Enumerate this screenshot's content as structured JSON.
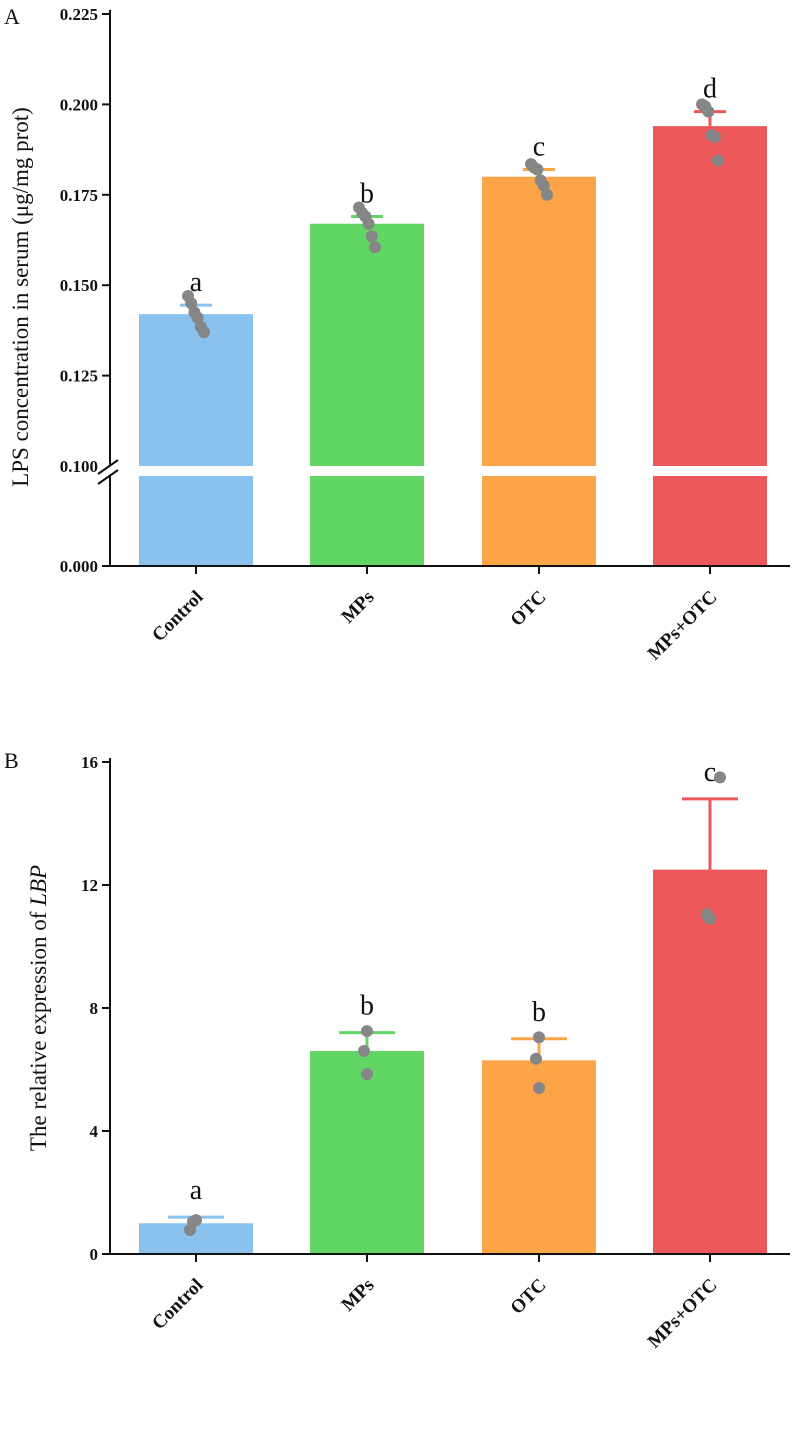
{
  "chart_data": [
    {
      "type": "bar",
      "panel_label": "A",
      "ylabel": "LPS concentration in serum (μg/mg prot)",
      "categories": [
        "Control",
        "MPs",
        "OTC",
        "MPs+OTC"
      ],
      "colors": [
        "#89c2ee",
        "#62d664",
        "#fba448",
        "#ec585a"
      ],
      "values": [
        0.142,
        0.167,
        0.18,
        0.194
      ],
      "errors": [
        0.0025,
        0.002,
        0.002,
        0.004
      ],
      "points": [
        [
          0.147,
          0.145,
          0.1425,
          0.141,
          0.1385,
          0.137
        ],
        [
          0.1715,
          0.17,
          0.169,
          0.167,
          0.1635,
          0.1605
        ],
        [
          0.1835,
          0.1825,
          0.182,
          0.179,
          0.1775,
          0.175
        ],
        [
          0.2,
          0.1995,
          0.198,
          0.1915,
          0.191,
          0.1845
        ]
      ],
      "significance": [
        "a",
        "b",
        "c",
        "d"
      ],
      "yticks": [
        "0.000",
        "0.100",
        "0.125",
        "0.150",
        "0.175",
        "0.200",
        "0.225"
      ],
      "ylim_upper": [
        0.1,
        0.225
      ],
      "ylim_lower": [
        0,
        0.1
      ],
      "axis_break": true
    },
    {
      "type": "bar",
      "panel_label": "B",
      "ylabel_prefix": "The relative expression of ",
      "ylabel_gene": "LBP",
      "categories": [
        "Control",
        "MPs",
        "OTC",
        "MPs+OTC"
      ],
      "colors": [
        "#89c2ee",
        "#62d664",
        "#fba448",
        "#ec585a"
      ],
      "values": [
        1.0,
        6.6,
        6.3,
        12.5
      ],
      "errors": [
        0.2,
        0.6,
        0.7,
        2.3
      ],
      "points": [
        [
          1.1,
          1.05,
          0.78
        ],
        [
          7.25,
          6.6,
          5.85
        ],
        [
          7.05,
          6.35,
          5.4
        ],
        [
          15.5,
          11.05,
          10.9
        ]
      ],
      "significance": [
        "a",
        "b",
        "b",
        "c"
      ],
      "yticks": [
        "0",
        "4",
        "8",
        "12",
        "16"
      ],
      "ylim": [
        0,
        16
      ]
    }
  ]
}
